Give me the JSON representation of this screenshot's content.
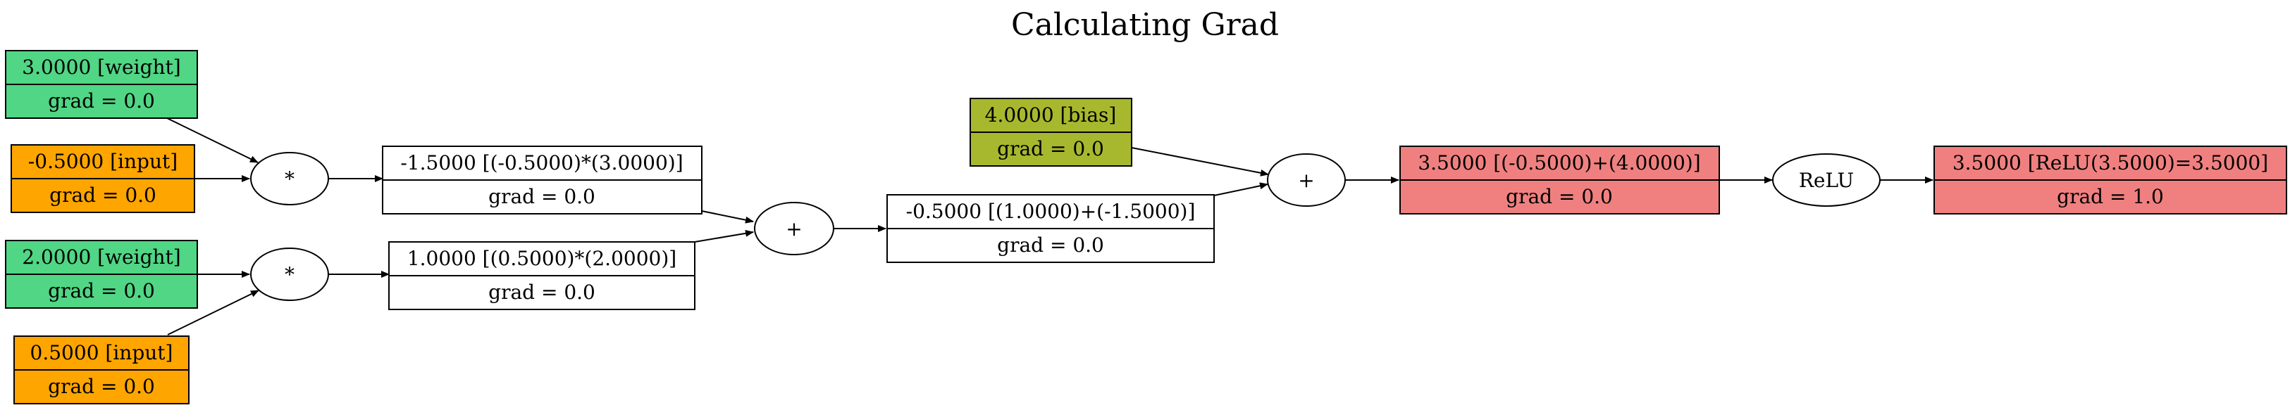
{
  "title": "Calculating Grad",
  "colors": {
    "weight": "#50d684",
    "input": "#ffa500",
    "bias": "#a8b82e",
    "output": "#f08080",
    "plain": "#ffffff",
    "stroke": "#000000"
  },
  "nodes": {
    "w1": {
      "value": "3.0000 [weight]",
      "grad": "grad = 0.0"
    },
    "x1": {
      "value": "-0.5000 [input]",
      "grad": "grad = 0.0"
    },
    "w2": {
      "value": "2.0000 [weight]",
      "grad": "grad = 0.0"
    },
    "x2": {
      "value": "0.5000 [input]",
      "grad": "grad = 0.0"
    },
    "m1": {
      "value": "-1.5000 [(-0.5000)*(3.0000)]",
      "grad": "grad = 0.0"
    },
    "m2": {
      "value": "1.0000 [(0.5000)*(2.0000)]",
      "grad": "grad = 0.0"
    },
    "s1": {
      "value": "-0.5000 [(1.0000)+(-1.5000)]",
      "grad": "grad = 0.0"
    },
    "b": {
      "value": "4.0000 [bias]",
      "grad": "grad = 0.0"
    },
    "s2": {
      "value": "3.5000 [(-0.5000)+(4.0000)]",
      "grad": "grad = 0.0"
    },
    "out": {
      "value": "3.5000 [ReLU(3.5000)=3.5000]",
      "grad": "grad = 1.0"
    }
  },
  "ops": {
    "mul1": "*",
    "mul2": "*",
    "add1": "+",
    "add2": "+",
    "relu": "ReLU"
  }
}
